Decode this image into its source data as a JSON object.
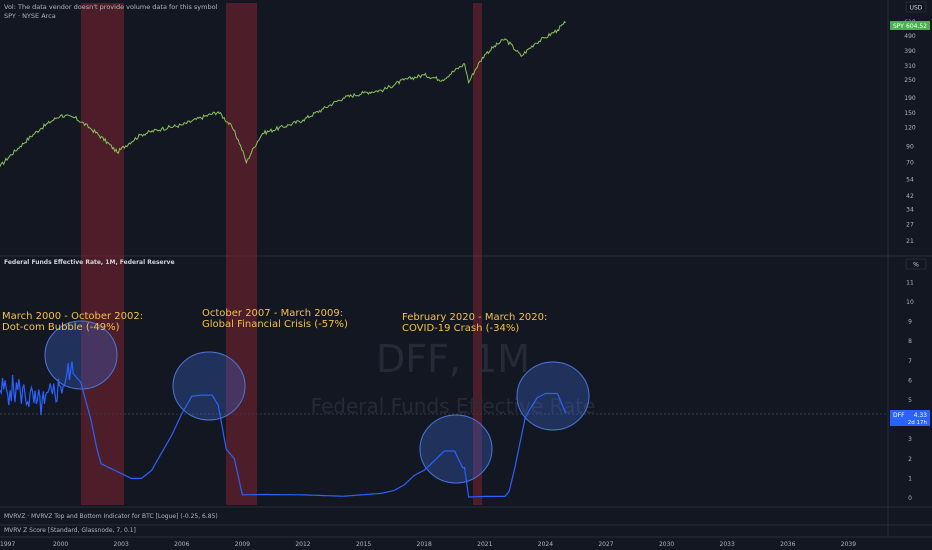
{
  "header": {
    "vol_notice": "Vol: The data vendor doesn't provide volume data for this symbol",
    "symbol_line": "SPY · NYSE Arca",
    "currency": "USD"
  },
  "price_pane": {
    "badge_symbol": "SPY",
    "badge_value": "604.52",
    "y_ticks": [
      610,
      490,
      390,
      310,
      250,
      190,
      150,
      120,
      90,
      70,
      54,
      42,
      34,
      27,
      21
    ],
    "line_color": "#89c25c"
  },
  "rate_pane": {
    "title": "Federal Funds Effective Rate, 1M, Federal Reserve",
    "unit": "%",
    "watermark_symbol": "DFF, 1M",
    "watermark_name": "Federal Funds Effective Rate",
    "badge_symbol": "DFF",
    "badge_value": "4.33",
    "badge_countdown": "2d 17h",
    "y_ticks": [
      0,
      1,
      2,
      3,
      4,
      5,
      6,
      7,
      8,
      9,
      10,
      11
    ],
    "line_color": "#2962ff"
  },
  "indicators": {
    "mvrvz": "MVRVZ · MVRVZ Top and Bottom Indicator for BTC [Logue] (-0.25, 6.85)",
    "mvrv_z": "MVRV Z Score [Standard, Glassnode, 7, 0.1]"
  },
  "time_axis": {
    "labels": [
      "1997",
      "2000",
      "2003",
      "2006",
      "2009",
      "2012",
      "2015",
      "2018",
      "2021",
      "2024",
      "2027",
      "2030",
      "2033",
      "2036",
      "2039"
    ]
  },
  "annotations": [
    {
      "line1": "March 2000 - October 2002:",
      "line2": "Dot-com Bubble (-49%)"
    },
    {
      "line1": "October 2007 - March 2009:",
      "line2": "Global Financial Crisis (-57%)"
    },
    {
      "line1": "February 2020 - March 2020:",
      "line2": "COVID-19 Crash (-34%)"
    }
  ],
  "chart_data": [
    {
      "type": "line",
      "scale": "log",
      "series": [
        {
          "name": "SPY",
          "x": [
            1997.0,
            1998.0,
            1999.0,
            2000.0,
            2000.7,
            2001.5,
            2002.8,
            2004.0,
            2005.0,
            2006.0,
            2007.8,
            2008.5,
            2009.2,
            2010.0,
            2011.3,
            2012.0,
            2013.0,
            2014.0,
            2015.0,
            2016.0,
            2017.0,
            2018.0,
            2018.9,
            2020.0,
            2020.2,
            2021.0,
            2022.0,
            2022.8,
            2023.5,
            2024.0,
            2024.6,
            2025.0
          ],
          "values": [
            66,
            90,
            118,
            145,
            140,
            118,
            82,
            108,
            118,
            125,
            153,
            120,
            70,
            110,
            125,
            135,
            160,
            190,
            205,
            215,
            250,
            270,
            250,
            320,
            240,
            370,
            470,
            360,
            440,
            480,
            540,
            604.52
          ]
        }
      ],
      "y_ticks": [
        21,
        27,
        34,
        42,
        54,
        70,
        90,
        120,
        150,
        190,
        250,
        310,
        390,
        490,
        610
      ]
    },
    {
      "type": "line",
      "series": [
        {
          "name": "Federal Funds Effective Rate",
          "x": [
            1997.0,
            1997.5,
            1998.0,
            1998.8,
            1999.2,
            1999.6,
            2000.0,
            2000.5,
            2001.0,
            2001.5,
            2001.8,
            2002.0,
            2003.0,
            2003.5,
            2004.0,
            2004.5,
            2005.0,
            2005.5,
            2006.0,
            2006.5,
            2007.0,
            2007.5,
            2007.8,
            2008.2,
            2008.6,
            2009.0,
            2010.0,
            2012.0,
            2014.0,
            2015.9,
            2016.5,
            2017.0,
            2017.5,
            2018.0,
            2018.5,
            2019.0,
            2019.5,
            2019.9,
            2020.0,
            2020.2,
            2021.0,
            2022.0,
            2022.2,
            2022.5,
            2022.8,
            2023.0,
            2023.3,
            2023.6,
            2024.0,
            2024.6,
            2024.8,
            2025.0
          ],
          "values": [
            5.5,
            5.5,
            5.5,
            4.8,
            4.8,
            5.3,
            5.7,
            6.5,
            5.9,
            4.0,
            2.5,
            1.75,
            1.25,
            1.0,
            1.0,
            1.4,
            2.3,
            3.2,
            4.3,
            5.2,
            5.25,
            5.25,
            4.75,
            2.5,
            2.0,
            0.16,
            0.18,
            0.16,
            0.09,
            0.24,
            0.38,
            0.66,
            1.15,
            1.42,
            1.9,
            2.4,
            2.4,
            1.55,
            1.55,
            0.05,
            0.08,
            0.08,
            0.33,
            1.6,
            3.1,
            4.1,
            4.65,
            5.12,
            5.33,
            5.33,
            4.83,
            4.33
          ]
        }
      ],
      "y_ticks": [
        0,
        1,
        2,
        3,
        4,
        5,
        6,
        7,
        8,
        9,
        10,
        11
      ]
    }
  ]
}
